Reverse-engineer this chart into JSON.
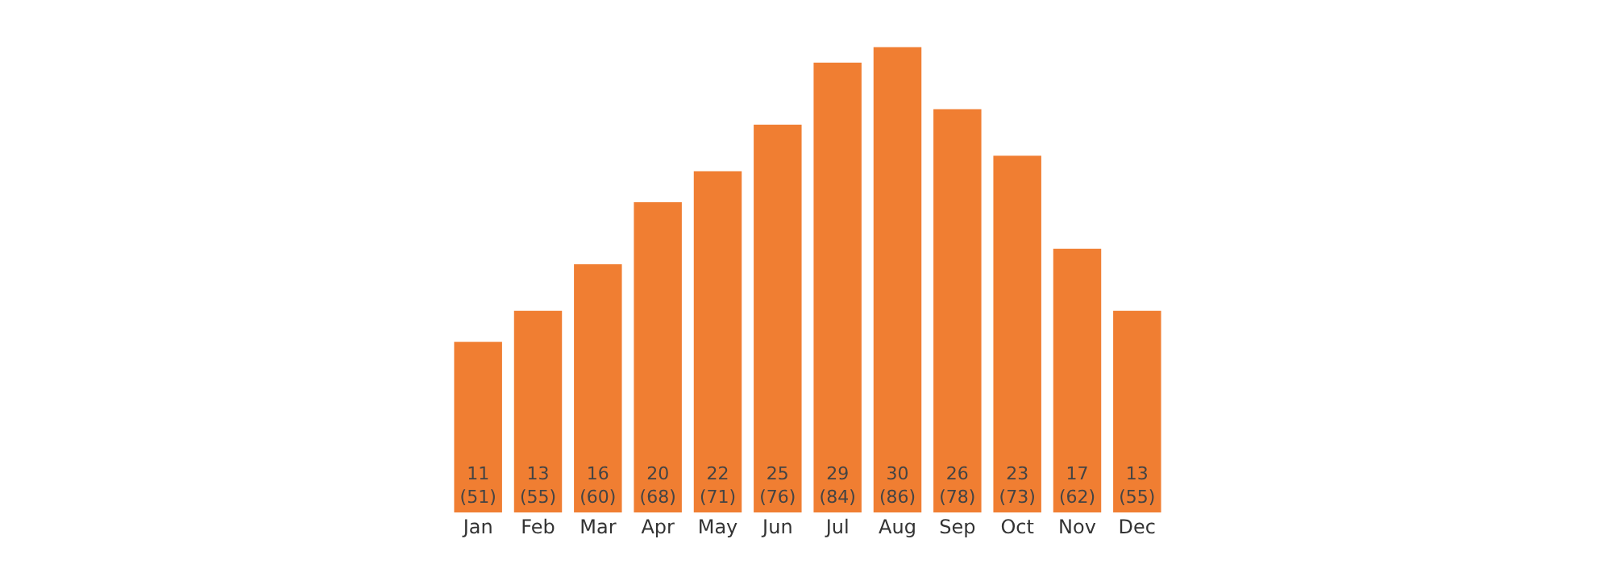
{
  "chart_data": {
    "type": "bar",
    "categories": [
      "Jan",
      "Feb",
      "Mar",
      "Apr",
      "May",
      "Jun",
      "Jul",
      "Aug",
      "Sep",
      "Oct",
      "Nov",
      "Dec"
    ],
    "values": [
      11,
      13,
      16,
      20,
      22,
      25,
      29,
      30,
      26,
      23,
      17,
      13
    ],
    "value_labels": [
      "11\n(51)",
      "13\n(55)",
      "16\n(60)",
      "20\n(68)",
      "22\n(71)",
      "25\n(76)",
      "29\n(84)",
      "30\n(86)",
      "26\n(78)",
      "23\n(73)",
      "17\n(62)",
      "13\n(55)"
    ],
    "color": "#f07e32"
  }
}
